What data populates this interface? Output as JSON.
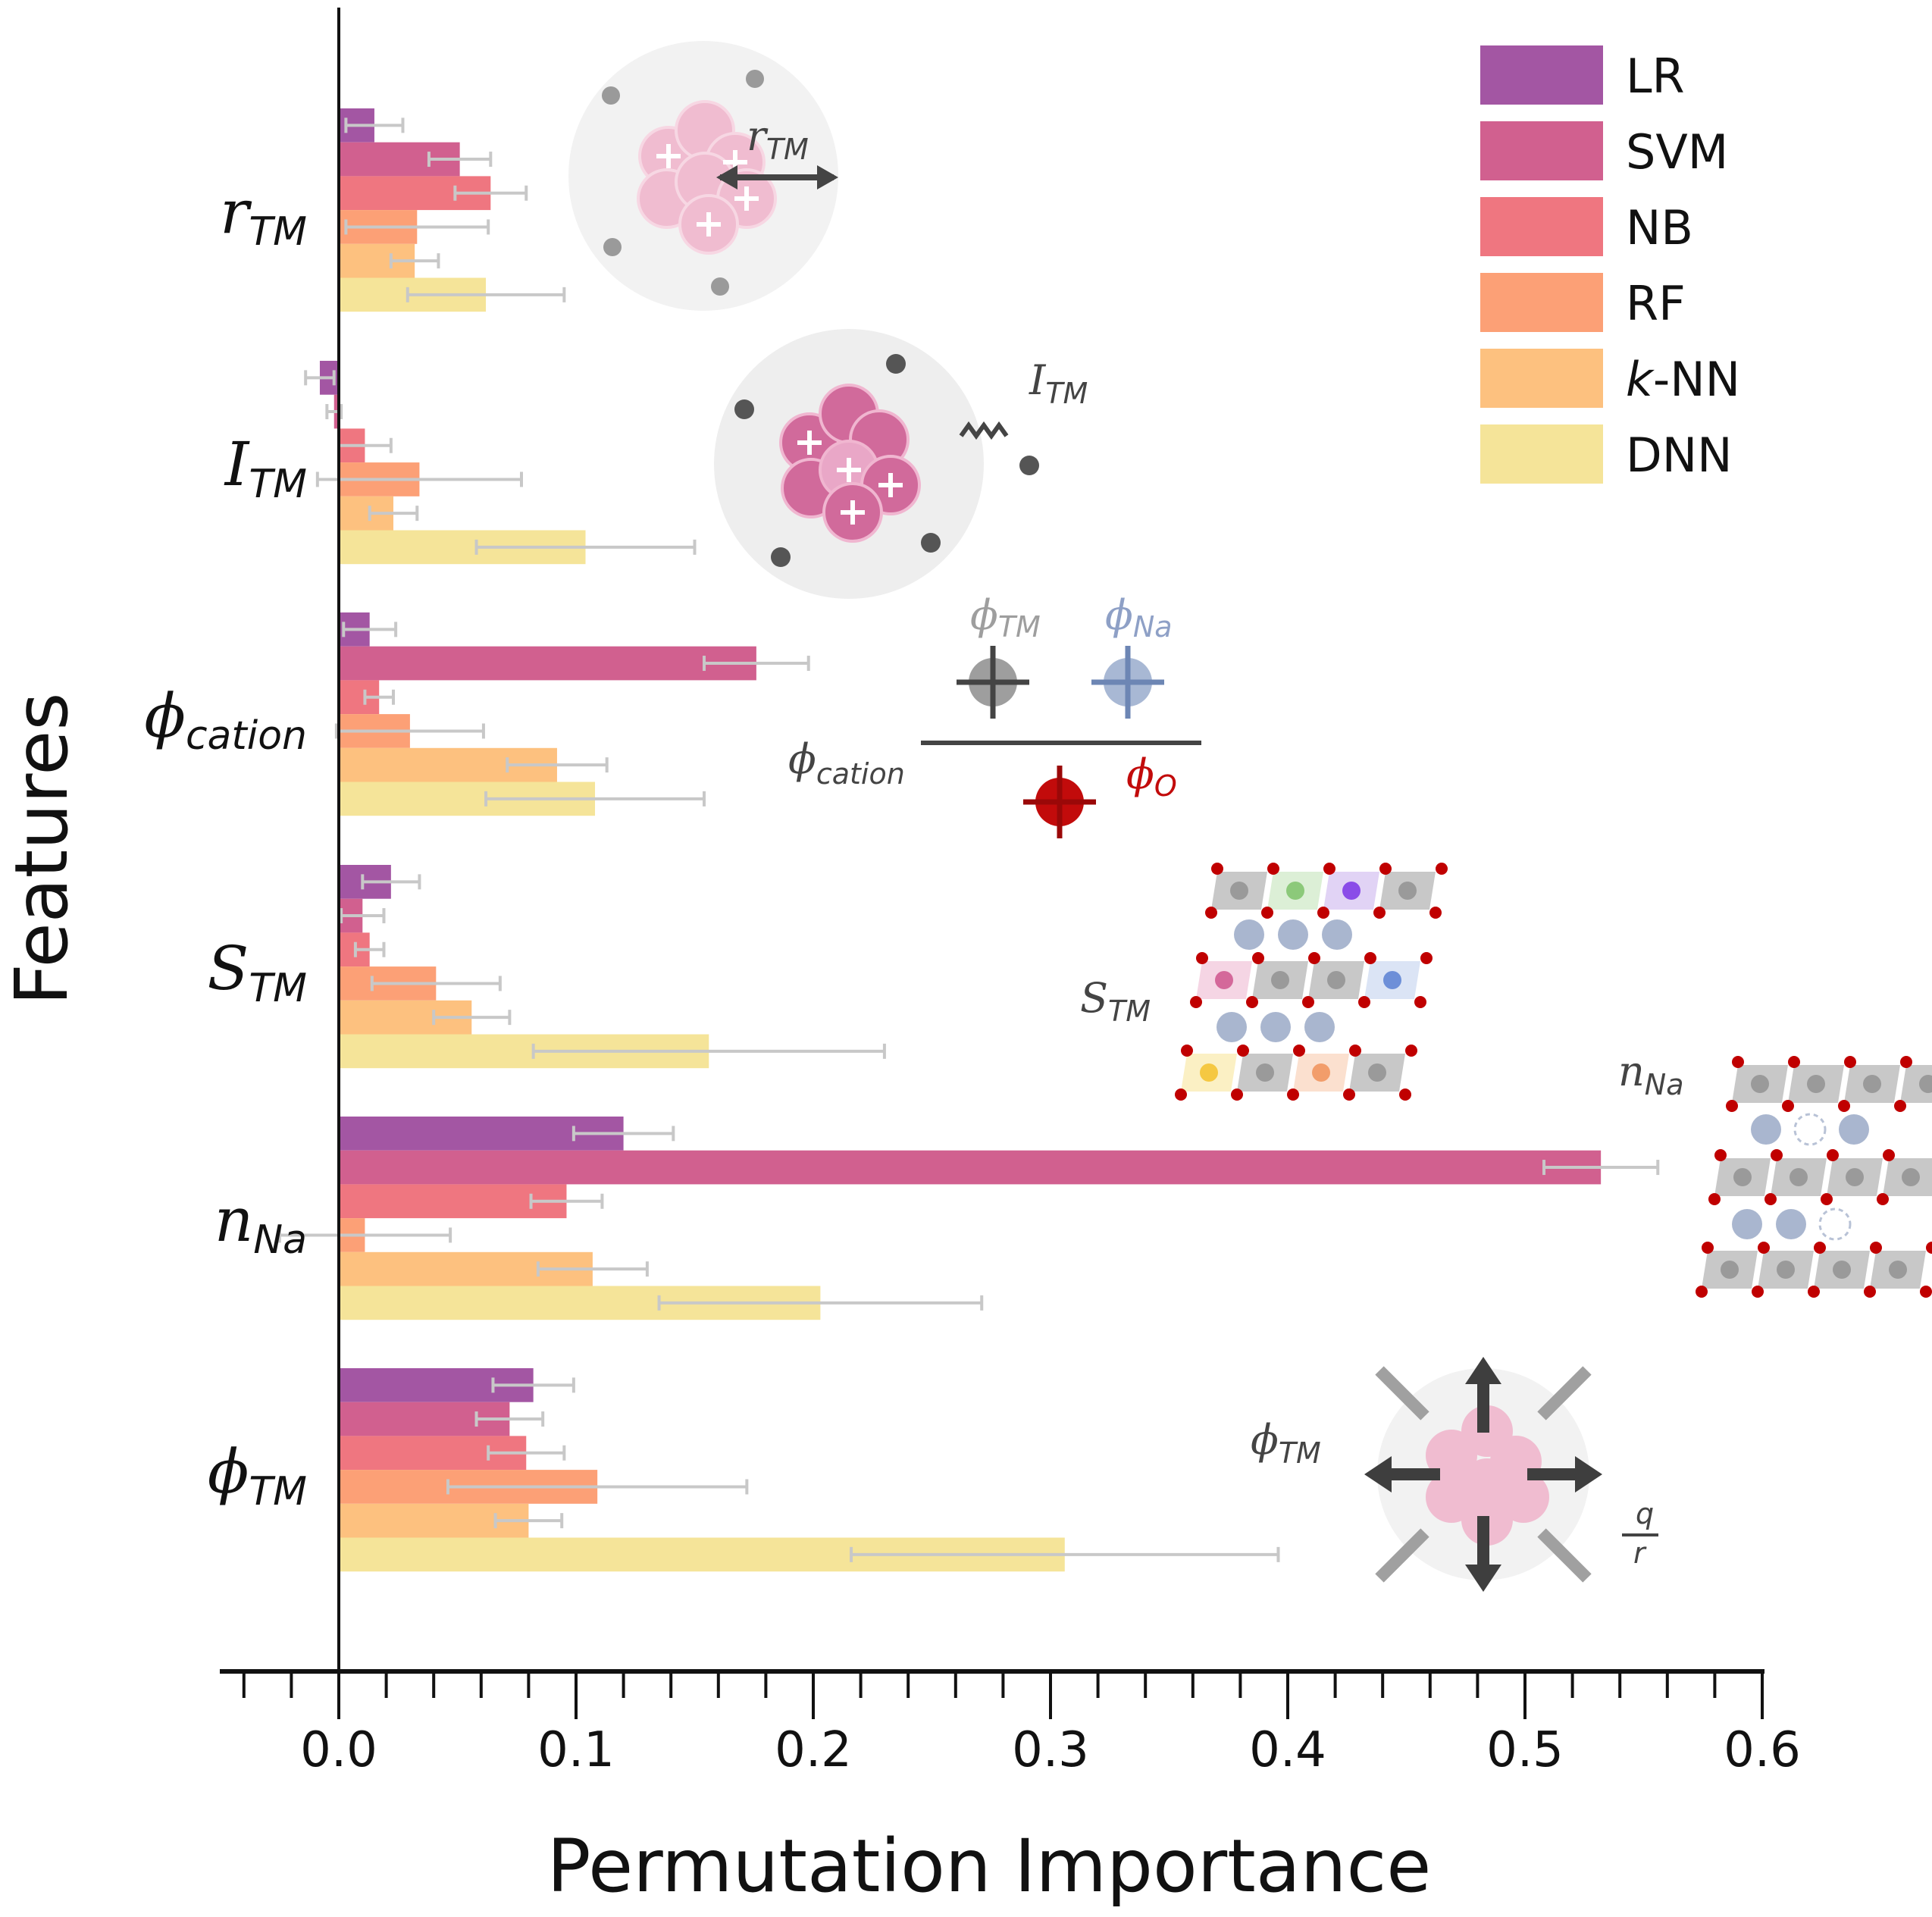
{
  "chart_data": {
    "type": "bar",
    "orientation": "horizontal",
    "title": "",
    "xlabel": "Permutation Importance",
    "ylabel": "Features",
    "xlim": [
      -0.05,
      0.6
    ],
    "xticks": [
      "0.0",
      "0.1",
      "0.2",
      "0.3",
      "0.4",
      "0.5",
      "0.6"
    ],
    "grid": false,
    "legend_position": "top-right",
    "categories": [
      {
        "main": "r",
        "sub": "TM",
        "sub_italic": true
      },
      {
        "main": "I",
        "sub": "TM",
        "sub_italic": false
      },
      {
        "main": "ϕ",
        "sub": "cation",
        "sub_italic": false
      },
      {
        "main": "S",
        "sub": "TM",
        "sub_italic": false
      },
      {
        "main": "n",
        "sub": "Na",
        "sub_italic": false
      },
      {
        "main": "ϕ",
        "sub": "TM",
        "sub_italic": false
      }
    ],
    "series": [
      {
        "name": "LR",
        "color": "#a356a3",
        "values": [
          0.015,
          -0.008,
          0.013,
          0.022,
          0.12,
          0.082
        ],
        "errors": [
          0.012,
          0.006,
          0.011,
          0.012,
          0.021,
          0.017
        ]
      },
      {
        "name": "SVM",
        "color": "#d1608f",
        "values": [
          0.051,
          -0.002,
          0.176,
          0.01,
          0.532,
          0.072
        ],
        "errors": [
          0.013,
          0.003,
          0.022,
          0.009,
          0.024,
          0.014
        ]
      },
      {
        "name": "NB",
        "color": "#ef7680",
        "values": [
          0.064,
          0.011,
          0.017,
          0.013,
          0.096,
          0.079
        ],
        "errors": [
          0.015,
          0.011,
          0.006,
          0.006,
          0.015,
          0.016
        ]
      },
      {
        "name": "RF",
        "color": "#fca076",
        "values": [
          0.033,
          0.034,
          0.03,
          0.041,
          0.011,
          0.109
        ],
        "errors": [
          0.03,
          0.043,
          0.031,
          0.027,
          0.036,
          0.063
        ]
      },
      {
        "name": "k-NN",
        "color": "#fdc17f",
        "values": [
          0.032,
          0.023,
          0.092,
          0.056,
          0.107,
          0.08
        ],
        "errors": [
          0.01,
          0.01,
          0.021,
          0.016,
          0.023,
          0.014
        ]
      },
      {
        "name": "DNN",
        "color": "#f5e499",
        "values": [
          0.062,
          0.104,
          0.108,
          0.156,
          0.203,
          0.306
        ],
        "errors": [
          0.033,
          0.046,
          0.046,
          0.074,
          0.068,
          0.09
        ]
      }
    ],
    "error_bar_color": "#c8c8c8"
  },
  "legend": {
    "items": [
      {
        "label": "LR",
        "italic_prefix": ""
      },
      {
        "label": "SVM",
        "italic_prefix": ""
      },
      {
        "label": "NB",
        "italic_prefix": ""
      },
      {
        "label": "RF",
        "italic_prefix": ""
      },
      {
        "label": "-NN",
        "italic_prefix": "k"
      },
      {
        "label": "DNN",
        "italic_prefix": ""
      }
    ]
  },
  "insets": {
    "r_tm": {
      "main": "r",
      "sub": "TM"
    },
    "i_tm": {
      "main": "I",
      "sub": "TM"
    },
    "phi_cation": {
      "main": "ϕ",
      "sub": "cation",
      "num_left": {
        "main": "ϕ",
        "sub": "TM"
      },
      "num_right": {
        "main": "ϕ",
        "sub": "Na"
      },
      "den": {
        "main": "ϕ",
        "sub": "O"
      }
    },
    "s_tm": {
      "main": "S",
      "sub": "TM"
    },
    "n_na": {
      "main": "n",
      "sub": "Na"
    },
    "phi_tm": {
      "main": "ϕ",
      "sub": "TM",
      "frac_num": "q",
      "frac_den": "r"
    }
  }
}
